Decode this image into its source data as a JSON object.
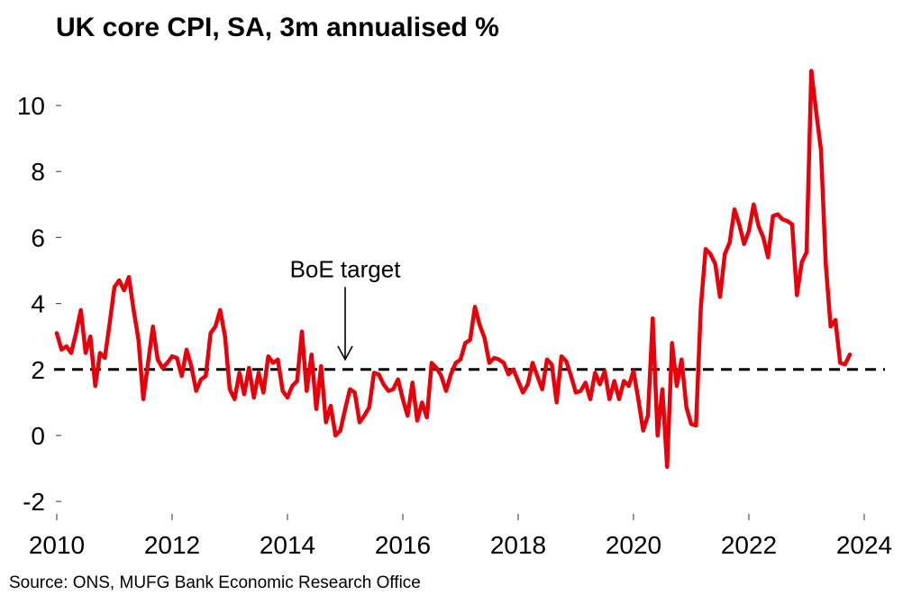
{
  "chart_data": {
    "type": "line",
    "title": "UK core CPI, SA, 3m annualised %",
    "source": "Source: ONS, MUFG Bank Economic Research Office",
    "xlabel": "",
    "ylabel": "",
    "x_start": "2010-01",
    "x_end": "2023-12",
    "frequency": "monthly",
    "xlim": [
      2010,
      2024.4
    ],
    "ylim": [
      -2.3,
      11.2
    ],
    "x_ticks": [
      2010,
      2012,
      2014,
      2016,
      2018,
      2020,
      2022,
      2024
    ],
    "x_tick_labels": [
      "2010",
      "2012",
      "2014",
      "2016",
      "2018",
      "2020",
      "2022",
      "2024"
    ],
    "y_ticks": [
      -2,
      0,
      2,
      4,
      6,
      8,
      10
    ],
    "y_tick_labels": [
      "-2",
      "0",
      "2",
      "4",
      "6",
      "8",
      "10"
    ],
    "grid": false,
    "series": [
      {
        "name": "UK core CPI, SA, 3m annualised %",
        "color": "#e8000b",
        "values": [
          3.1,
          2.6,
          2.7,
          2.5,
          3.1,
          3.8,
          2.5,
          3.0,
          1.5,
          2.5,
          2.35,
          3.4,
          4.5,
          4.7,
          4.4,
          4.8,
          3.8,
          2.9,
          1.1,
          2.2,
          3.3,
          2.3,
          2.05,
          2.2,
          2.4,
          2.35,
          1.8,
          2.6,
          2.1,
          1.35,
          1.7,
          1.8,
          3.1,
          3.3,
          3.8,
          3.0,
          1.4,
          1.1,
          1.9,
          1.25,
          2.05,
          1.15,
          1.9,
          1.3,
          2.4,
          2.2,
          2.3,
          1.35,
          1.15,
          1.5,
          1.65,
          3.15,
          1.35,
          2.45,
          0.8,
          2.1,
          0.4,
          0.9,
          0.0,
          0.15,
          0.8,
          1.4,
          1.3,
          0.4,
          0.6,
          0.85,
          1.9,
          1.85,
          1.55,
          1.35,
          1.4,
          1.7,
          1.1,
          0.6,
          1.6,
          0.45,
          1.0,
          0.55,
          2.2,
          2.05,
          1.8,
          1.35,
          1.85,
          2.2,
          2.3,
          2.8,
          2.9,
          3.9,
          3.35,
          2.95,
          2.2,
          2.35,
          2.3,
          2.2,
          1.85,
          2.0,
          1.65,
          1.3,
          1.55,
          2.2,
          1.8,
          1.4,
          2.3,
          2.15,
          1.0,
          2.4,
          2.25,
          1.8,
          1.3,
          1.35,
          1.6,
          1.1,
          1.9,
          1.55,
          1.95,
          1.1,
          1.65,
          1.1,
          1.65,
          1.5,
          1.95,
          1.1,
          0.15,
          0.6,
          3.55,
          0.0,
          1.4,
          -0.95,
          2.8,
          1.5,
          2.3,
          0.85,
          0.35,
          0.3,
          3.9,
          5.65,
          5.5,
          5.2,
          4.2,
          5.5,
          5.85,
          6.85,
          6.4,
          5.8,
          6.2,
          7.0,
          6.35,
          6.0,
          5.4,
          6.65,
          6.7,
          6.55,
          6.5,
          6.4,
          4.25,
          5.25,
          5.55,
          11.05,
          9.8,
          8.65,
          5.2,
          3.3,
          3.5,
          2.2,
          2.15,
          2.45
        ]
      }
    ],
    "reference_line": {
      "label": "BoE target",
      "value": 2,
      "style": "dashed",
      "color": "#000000"
    },
    "annotations": [
      {
        "text": "BoE target",
        "x": 2015.0,
        "y_text": 4.8,
        "arrow_from": 4.5,
        "arrow_to": 2.3
      }
    ]
  }
}
